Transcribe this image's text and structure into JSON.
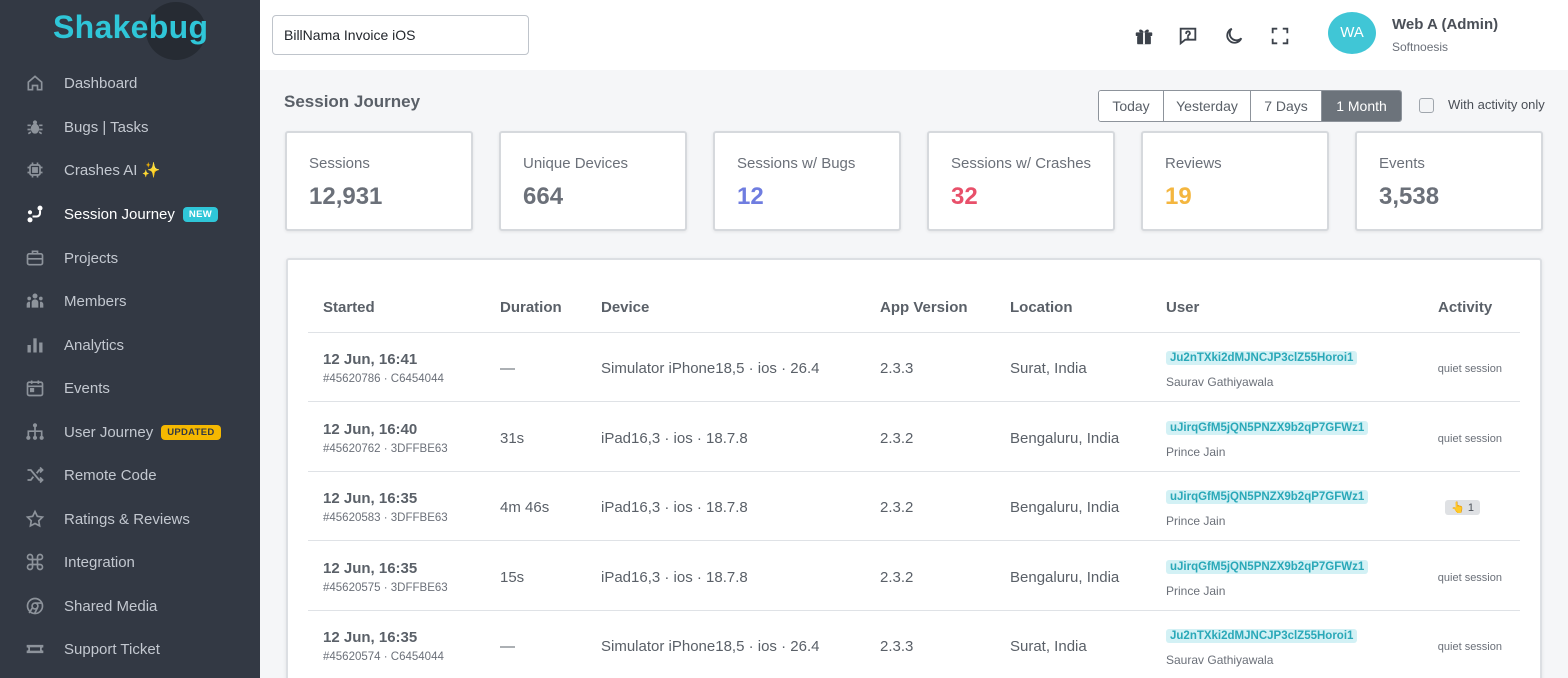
{
  "sidebar": {
    "logo": "Shakebug",
    "items": [
      {
        "label": "Dashboard",
        "icon": "home-icon"
      },
      {
        "label": "Bugs | Tasks",
        "icon": "bug-icon"
      },
      {
        "label": "Crashes AI ✨",
        "icon": "chip-icon"
      },
      {
        "label": "Session Journey",
        "icon": "journey-icon",
        "badge": "NEW",
        "active": true
      },
      {
        "label": "Projects",
        "icon": "briefcase-icon"
      },
      {
        "label": "Members",
        "icon": "members-icon"
      },
      {
        "label": "Analytics",
        "icon": "analytics-icon"
      },
      {
        "label": "Events",
        "icon": "calendar-icon"
      },
      {
        "label": "User Journey",
        "icon": "flow-icon",
        "badge": "UPDATED"
      },
      {
        "label": "Remote Code",
        "icon": "shuffle-icon"
      },
      {
        "label": "Ratings & Reviews",
        "icon": "star-icon"
      },
      {
        "label": "Integration",
        "icon": "command-icon"
      },
      {
        "label": "Shared Media",
        "icon": "chrome-icon"
      },
      {
        "label": "Support Ticket",
        "icon": "ticket-icon"
      }
    ]
  },
  "topbar": {
    "project": "BillNama Invoice iOS",
    "avatar_initials": "WA",
    "user_name": "Web A (Admin)",
    "user_org": "Softnoesis"
  },
  "main": {
    "title": "Session Journey",
    "ranges": [
      "Today",
      "Yesterday",
      "7 Days",
      "1 Month"
    ],
    "active_range": "1 Month",
    "activity_filter_label": "With activity only",
    "activity_filter_checked": false,
    "stats": [
      {
        "label": "Sessions",
        "value": "12,931",
        "color": "#6b7079"
      },
      {
        "label": "Unique Devices",
        "value": "664",
        "color": "#6b7079"
      },
      {
        "label": "Sessions w/ Bugs",
        "value": "12",
        "color": "#6f7de0"
      },
      {
        "label": "Sessions w/ Crashes",
        "value": "32",
        "color": "#e8506a"
      },
      {
        "label": "Reviews",
        "value": "19",
        "color": "#f4b63f"
      },
      {
        "label": "Events",
        "value": "3,538",
        "color": "#6b7079"
      }
    ]
  },
  "table": {
    "columns": [
      "Started",
      "Duration",
      "Device",
      "App Version",
      "Location",
      "User",
      "Activity"
    ],
    "rows": [
      {
        "started": "12 Jun, 16:41",
        "sub": "#45620786 · C6454044",
        "duration": "—",
        "device": "Simulator iPhone18,5 · ios · 26.4",
        "version": "2.3.3",
        "location": "Surat, India",
        "user_id": "Ju2nTXki2dMJNCJP3clZ55Horoi1",
        "user_name": "Saurav Gathiyawala",
        "activity": "quiet session"
      },
      {
        "started": "12 Jun, 16:40",
        "sub": "#45620762 · 3DFFBE63",
        "duration": "31s",
        "device": "iPad16,3 · ios · 18.7.8",
        "version": "2.3.2",
        "location": "Bengaluru, India",
        "user_id": "uJirqGfM5jQN5PNZX9b2qP7GFWz1",
        "user_name": "Prince Jain",
        "activity": "quiet session"
      },
      {
        "started": "12 Jun, 16:35",
        "sub": "#45620583 · 3DFFBE63",
        "duration": "4m 46s",
        "device": "iPad16,3 · ios · 18.7.8",
        "version": "2.3.2",
        "location": "Bengaluru, India",
        "user_id": "uJirqGfM5jQN5PNZX9b2qP7GFWz1",
        "user_name": "Prince Jain",
        "activity": "👆 1"
      },
      {
        "started": "12 Jun, 16:35",
        "sub": "#45620575 · 3DFFBE63",
        "duration": "15s",
        "device": "iPad16,3 · ios · 18.7.8",
        "version": "2.3.2",
        "location": "Bengaluru, India",
        "user_id": "uJirqGfM5jQN5PNZX9b2qP7GFWz1",
        "user_name": "Prince Jain",
        "activity": "quiet session"
      },
      {
        "started": "12 Jun, 16:35",
        "sub": "#45620574 · C6454044",
        "duration": "—",
        "device": "Simulator iPhone18,5 · ios · 26.4",
        "version": "2.3.3",
        "location": "Surat, India",
        "user_id": "Ju2nTXki2dMJNCJP3clZ55Horoi1",
        "user_name": "Saurav Gathiyawala",
        "activity": "quiet session"
      }
    ]
  }
}
